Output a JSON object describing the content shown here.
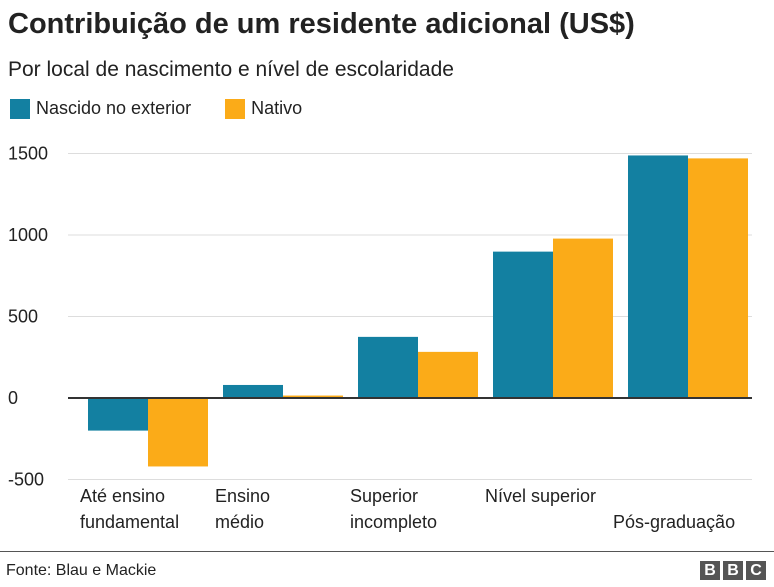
{
  "chart_data": {
    "type": "bar",
    "title": "Contribuição de um residente adicional (US$)",
    "subtitle": "Por local de nascimento e nível de escolaridade",
    "categories": [
      [
        "Até ensino",
        "fundamental"
      ],
      [
        "Ensino",
        "médio"
      ],
      [
        "Superior",
        "incompleto"
      ],
      [
        "Nível superior",
        ""
      ],
      [
        "",
        "Pós-graduação"
      ]
    ],
    "series": [
      {
        "name": "Nascido no exterior",
        "color": "#1380a1",
        "values": [
          -200,
          80,
          375,
          898,
          1488
        ]
      },
      {
        "name": "Nativo",
        "color": "#fbab18",
        "values": [
          -420,
          15,
          283,
          978,
          1470
        ]
      }
    ],
    "yticks": [
      1500,
      1000,
      500,
      0,
      -500
    ],
    "ylim": [
      -500,
      1500
    ],
    "grid": true,
    "legend_placement": "top-left",
    "source": "Fonte: Blau e Mackie",
    "logo": "BBC"
  }
}
